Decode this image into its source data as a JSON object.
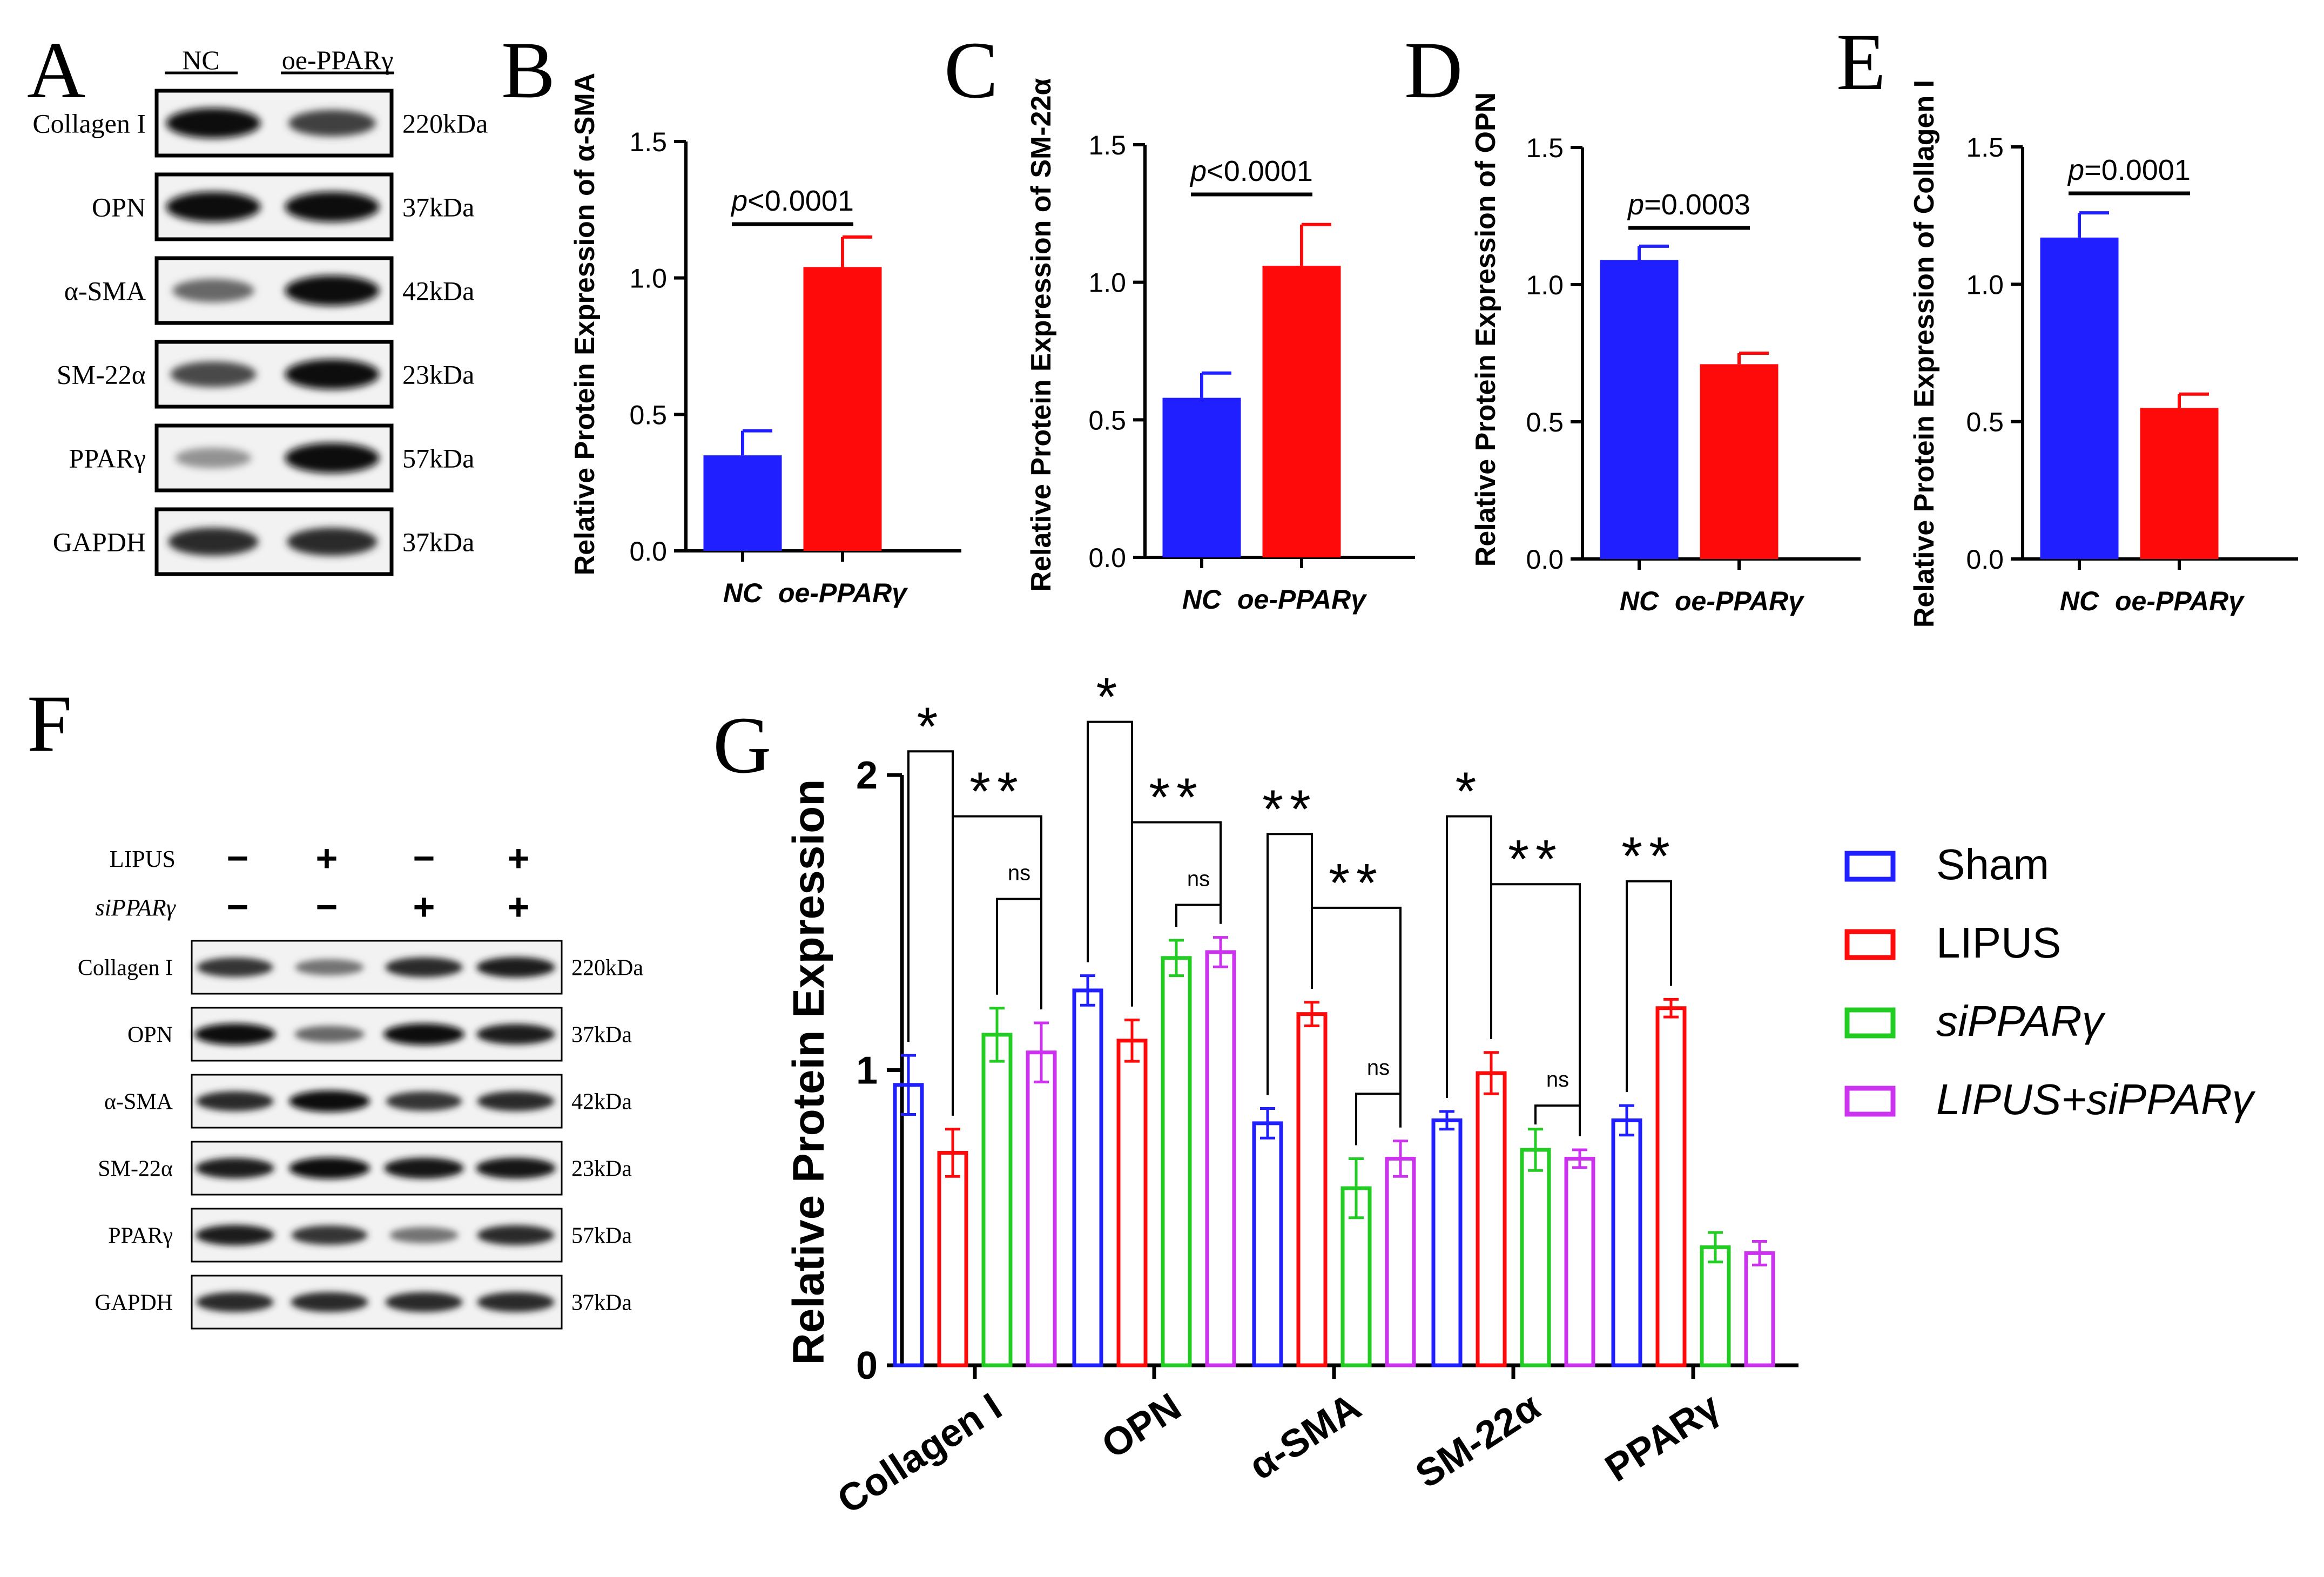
{
  "colors": {
    "blue": "#1f1fff",
    "red": "#ff0a0a",
    "green": "#22cc22",
    "magenta": "#cc33ee",
    "black": "#000000"
  },
  "blot_a": {
    "label": "A",
    "lanes": [
      "NC",
      "oe-PPARγ"
    ],
    "rows": [
      {
        "name": "Collagen I",
        "kda": "220kDa",
        "bands": [
          1.0,
          0.75
        ]
      },
      {
        "name": "OPN",
        "kda": "37kDa",
        "bands": [
          1.0,
          1.0
        ]
      },
      {
        "name": "α-SMA",
        "kda": "42kDa",
        "bands": [
          0.55,
          1.0
        ]
      },
      {
        "name": "SM-22α",
        "kda": "23kDa",
        "bands": [
          0.7,
          1.0
        ]
      },
      {
        "name": "PPARγ",
        "kda": "57kDa",
        "bands": [
          0.35,
          1.0
        ]
      },
      {
        "name": "GAPDH",
        "kda": "37kDa",
        "bands": [
          0.85,
          0.85
        ]
      }
    ]
  },
  "blot_f": {
    "label": "F",
    "conditions": [
      {
        "name": "LIPUS",
        "signs": [
          "−",
          "+",
          "−",
          "+"
        ]
      },
      {
        "name": "siPPARγ",
        "signs": [
          "−",
          "−",
          "+",
          "+"
        ]
      }
    ],
    "rows": [
      {
        "name": "Collagen I",
        "kda": "220kDa",
        "bands": [
          0.8,
          0.5,
          0.85,
          0.9
        ]
      },
      {
        "name": "OPN",
        "kda": "37kDa",
        "bands": [
          1.0,
          0.55,
          1.0,
          0.9
        ]
      },
      {
        "name": "α-SMA",
        "kda": "42kDa",
        "bands": [
          0.85,
          1.0,
          0.8,
          0.85
        ]
      },
      {
        "name": "SM-22α",
        "kda": "23kDa",
        "bands": [
          0.9,
          1.0,
          0.95,
          0.95
        ]
      },
      {
        "name": "PPARγ",
        "kda": "57kDa",
        "bands": [
          0.9,
          0.8,
          0.5,
          0.85
        ]
      },
      {
        "name": "GAPDH",
        "kda": "37kDa",
        "bands": [
          0.85,
          0.85,
          0.85,
          0.85
        ]
      }
    ]
  },
  "chart_data": [
    {
      "label": "B",
      "type": "bar",
      "categories": [
        "NC",
        "oe-PPARγ"
      ],
      "values": [
        0.35,
        1.04
      ],
      "errors": [
        0.09,
        0.11
      ],
      "ylabel": "Relative Protein Expression of α-SMA",
      "ylim": [
        0,
        1.5
      ],
      "yticks": [
        "0.0",
        "0.5",
        "1.0",
        "1.5"
      ],
      "pvalue": {
        "prefix": "p",
        "text": "<0.0001"
      }
    },
    {
      "label": "C",
      "type": "bar",
      "categories": [
        "NC",
        "oe-PPARγ"
      ],
      "values": [
        0.58,
        1.06
      ],
      "errors": [
        0.09,
        0.15
      ],
      "ylabel": "Relative Protein Expression of SM-22α",
      "ylim": [
        0,
        1.5
      ],
      "yticks": [
        "0.0",
        "0.5",
        "1.0",
        "1.5"
      ],
      "pvalue": {
        "prefix": "p",
        "text": "<0.0001"
      }
    },
    {
      "label": "D",
      "type": "bar",
      "categories": [
        "NC",
        "oe-PPARγ"
      ],
      "values": [
        1.09,
        0.71
      ],
      "errors": [
        0.05,
        0.04
      ],
      "ylabel": "Relative Protein Expression of OPN",
      "ylim": [
        0,
        1.5
      ],
      "yticks": [
        "0.0",
        "0.5",
        "1.0",
        "1.5"
      ],
      "pvalue": {
        "prefix": "p",
        "text": "=0.0003"
      }
    },
    {
      "label": "E",
      "type": "bar",
      "categories": [
        "NC",
        "oe-PPARγ"
      ],
      "values": [
        1.17,
        0.55
      ],
      "errors": [
        0.09,
        0.05
      ],
      "ylabel": "Relative Protein Expression of Collagen I",
      "ylim": [
        0,
        1.5
      ],
      "yticks": [
        "0.0",
        "0.5",
        "1.0",
        "1.5"
      ],
      "pvalue": {
        "prefix": "p",
        "text": "=0.0001"
      }
    },
    {
      "label": "G",
      "type": "bar",
      "categories": [
        "Collagen I",
        "OPN",
        "α-SMA",
        "SM-22α",
        "PPARγ"
      ],
      "series": [
        {
          "name": "Sham",
          "values": [
            0.95,
            1.27,
            0.82,
            0.83,
            0.83
          ],
          "errors": [
            0.1,
            0.05,
            0.05,
            0.03,
            0.05
          ]
        },
        {
          "name": "LIPUS",
          "values": [
            0.72,
            1.1,
            1.19,
            0.99,
            1.21
          ],
          "errors": [
            0.08,
            0.07,
            0.04,
            0.07,
            0.03
          ]
        },
        {
          "name": "siPPARγ",
          "values": [
            1.12,
            1.38,
            0.6,
            0.73,
            0.4
          ],
          "errors": [
            0.09,
            0.06,
            0.1,
            0.07,
            0.05
          ]
        },
        {
          "name": "LIPUS+siPPARγ",
          "values": [
            1.06,
            1.4,
            0.7,
            0.7,
            0.38
          ],
          "errors": [
            0.1,
            0.05,
            0.06,
            0.03,
            0.04
          ]
        }
      ],
      "ylabel": "Relative Protein Expression",
      "ylim": [
        0,
        2
      ],
      "yticks": [
        "0",
        "1",
        "2"
      ],
      "significance": [
        {
          "cat": 0,
          "a": 0,
          "b": 1,
          "mark": "*",
          "y": 2.08
        },
        {
          "cat": 0,
          "a": 1,
          "b": 3,
          "mark": "**",
          "y": 1.86
        },
        {
          "cat": 0,
          "a": 2,
          "b": 3,
          "mark": "ns",
          "y": 1.58
        },
        {
          "cat": 1,
          "a": 0,
          "b": 1,
          "mark": "*",
          "y": 2.18
        },
        {
          "cat": 1,
          "a": 1,
          "b": 3,
          "mark": "**",
          "y": 1.84
        },
        {
          "cat": 1,
          "a": 2,
          "b": 3,
          "mark": "ns",
          "y": 1.56
        },
        {
          "cat": 2,
          "a": 0,
          "b": 1,
          "mark": "**",
          "y": 1.8
        },
        {
          "cat": 2,
          "a": 1,
          "b": 3,
          "mark": "**",
          "y": 1.55
        },
        {
          "cat": 2,
          "a": 2,
          "b": 3,
          "mark": "ns",
          "y": 0.92
        },
        {
          "cat": 3,
          "a": 0,
          "b": 1,
          "mark": "*",
          "y": 1.86
        },
        {
          "cat": 3,
          "a": 1,
          "b": 3,
          "mark": "**",
          "y": 1.63
        },
        {
          "cat": 3,
          "a": 2,
          "b": 3,
          "mark": "ns",
          "y": 0.88
        },
        {
          "cat": 4,
          "a": 0,
          "b": 1,
          "mark": "**",
          "y": 1.64
        }
      ]
    }
  ]
}
